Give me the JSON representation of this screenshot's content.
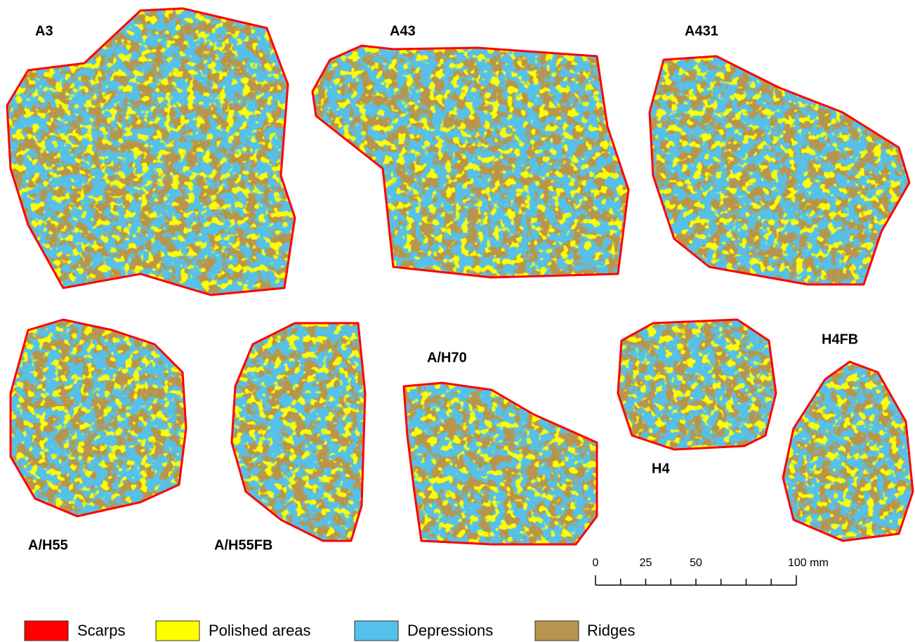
{
  "specimens": [
    {
      "label": "A3"
    },
    {
      "label": "A43"
    },
    {
      "label": "A431"
    },
    {
      "label": "A/H55"
    },
    {
      "label": "A/H55FB"
    },
    {
      "label": "A/H70"
    },
    {
      "label": "H4"
    },
    {
      "label": "H4FB"
    }
  ],
  "scale_bar": {
    "xlim": [
      0,
      100
    ],
    "xticks": [
      0,
      12.5,
      25,
      37.5,
      50,
      62.5,
      75,
      87.5,
      100
    ],
    "labels": [
      0,
      25,
      50,
      {
        "value": 100,
        "label": "100 mm"
      }
    ]
  },
  "legend": [
    {
      "name": "Scarps",
      "color": "#ff0000"
    },
    {
      "name": "Polished areas",
      "color": "#ffff00"
    },
    {
      "name": "Depressions",
      "color": "#55c1ea"
    },
    {
      "name": "Ridges",
      "color": "#b8954e"
    }
  ]
}
